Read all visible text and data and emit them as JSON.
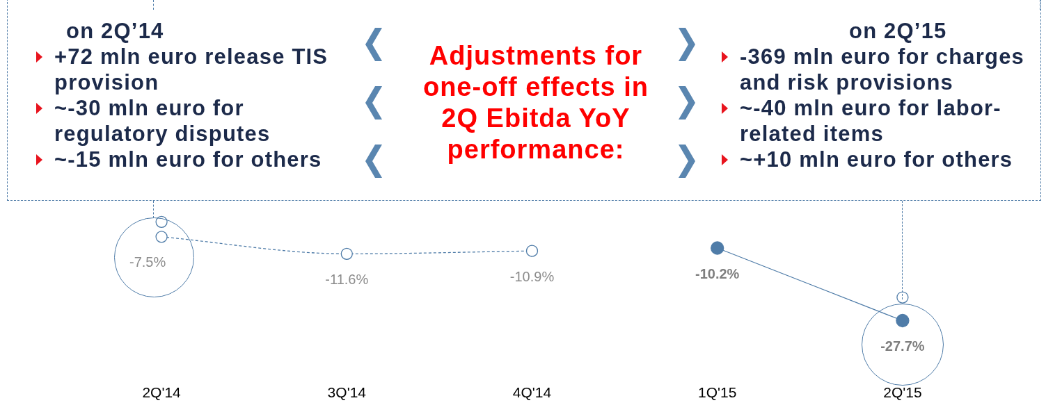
{
  "chart_data": {
    "type": "line",
    "title": "Adjustments for one-off effects in 2Q Ebitda YoY performance:",
    "categories": [
      "2Q'14",
      "3Q'14",
      "4Q'14",
      "1Q'15",
      "2Q'15"
    ],
    "series": [
      {
        "color": "#4f7ca8",
        "line_style": "dashed",
        "values": [
          -7.5,
          -11.6,
          -10.9,
          null,
          null
        ],
        "value_labels": [
          "-7.5%",
          "-11.6%",
          "-10.9%",
          null,
          null
        ]
      },
      {
        "color": "#4f7ca8",
        "line_style": "solid",
        "values": [
          null,
          null,
          null,
          -10.2,
          -27.7
        ],
        "value_labels": [
          null,
          null,
          null,
          "-10.2%",
          "-27.7%"
        ]
      },
      {
        "type": "scatter",
        "color": "#4f7ca8",
        "values": [
          -3.9,
          null,
          null,
          null,
          -22.1
        ]
      }
    ],
    "marker": "circle",
    "legend": false,
    "grid": false,
    "annotations": [
      "on 2Q’14",
      "+72 mln euro release TIS provision",
      "~-30 mln euro for regulatory disputes",
      "~-15 mln euro for others",
      "on 2Q’15",
      "-369 mln euro for charges and risk provisions",
      "~-40 mln euro for labor-related items",
      "~+10 mln euro for others"
    ]
  }
}
